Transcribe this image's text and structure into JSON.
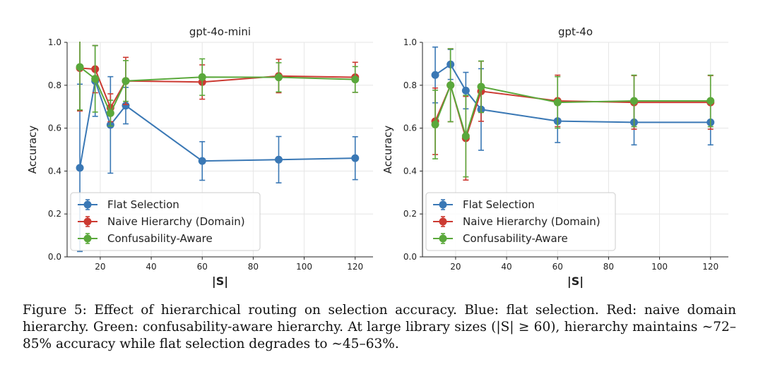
{
  "chart_data": [
    {
      "type": "line",
      "title": "gpt-4o-mini",
      "xlabel": "|S|",
      "ylabel": "Accuracy",
      "xlim": [
        7,
        127
      ],
      "ylim": [
        0.0,
        1.0
      ],
      "xticks": [
        20,
        40,
        60,
        80,
        100,
        120
      ],
      "yticks": [
        0.0,
        0.2,
        0.4,
        0.6,
        0.8,
        1.0
      ],
      "grid": true,
      "legend": "lower-left",
      "x": [
        12,
        18,
        24,
        30,
        60,
        90,
        120
      ],
      "series": [
        {
          "name": "Flat Selection",
          "color": "#3a78b5",
          "values": [
            0.415,
            0.82,
            0.615,
            0.705,
            0.447,
            0.453,
            0.46
          ],
          "err": [
            0.39,
            0.165,
            0.225,
            0.085,
            0.09,
            0.108,
            0.1
          ]
        },
        {
          "name": "Naive Hierarchy (Domain)",
          "color": "#cc3a32",
          "values": [
            0.88,
            0.875,
            0.695,
            0.82,
            0.815,
            0.843,
            0.837
          ],
          "err": [
            0.2,
            0.11,
            0.065,
            0.11,
            0.08,
            0.078,
            0.07
          ]
        },
        {
          "name": "Confusability-Aware",
          "color": "#5aa83b",
          "values": [
            0.885,
            0.83,
            0.67,
            0.82,
            0.838,
            0.837,
            0.827
          ],
          "err": [
            0.2,
            0.155,
            0.06,
            0.095,
            0.085,
            0.068,
            0.06
          ]
        }
      ]
    },
    {
      "type": "line",
      "title": "gpt-4o",
      "xlabel": "|S|",
      "ylabel": "Accuracy",
      "xlim": [
        7,
        127
      ],
      "ylim": [
        0.0,
        1.0
      ],
      "xticks": [
        20,
        40,
        60,
        80,
        100,
        120
      ],
      "yticks": [
        0.0,
        0.2,
        0.4,
        0.6,
        0.8,
        1.0
      ],
      "grid": true,
      "legend": "lower-left",
      "x": [
        12,
        18,
        24,
        30,
        60,
        90,
        120
      ],
      "series": [
        {
          "name": "Flat Selection",
          "color": "#3a78b5",
          "values": [
            0.848,
            0.897,
            0.775,
            0.687,
            0.633,
            0.627,
            0.627
          ],
          "err": [
            0.13,
            0.07,
            0.085,
            0.19,
            0.1,
            0.105,
            0.105
          ]
        },
        {
          "name": "Naive Hierarchy (Domain)",
          "color": "#cc3a32",
          "values": [
            0.632,
            0.8,
            0.553,
            0.772,
            0.727,
            0.72,
            0.72
          ],
          "err": [
            0.155,
            0.17,
            0.195,
            0.14,
            0.12,
            0.125,
            0.125
          ]
        },
        {
          "name": "Confusability-Aware",
          "color": "#5aa83b",
          "values": [
            0.617,
            0.8,
            0.563,
            0.793,
            0.72,
            0.727,
            0.727
          ],
          "err": [
            0.16,
            0.17,
            0.19,
            0.12,
            0.12,
            0.12,
            0.12
          ]
        }
      ]
    }
  ],
  "caption": "Figure 5: Effect of hierarchical routing on selection accuracy. Blue: flat selection. Red: naive domain hierarchy. Green: confusability-aware hierarchy. At large library sizes (|S| ≥ 60), hierarchy maintains ∼72–85% accuracy while flat selection degrades to ∼45–63%."
}
